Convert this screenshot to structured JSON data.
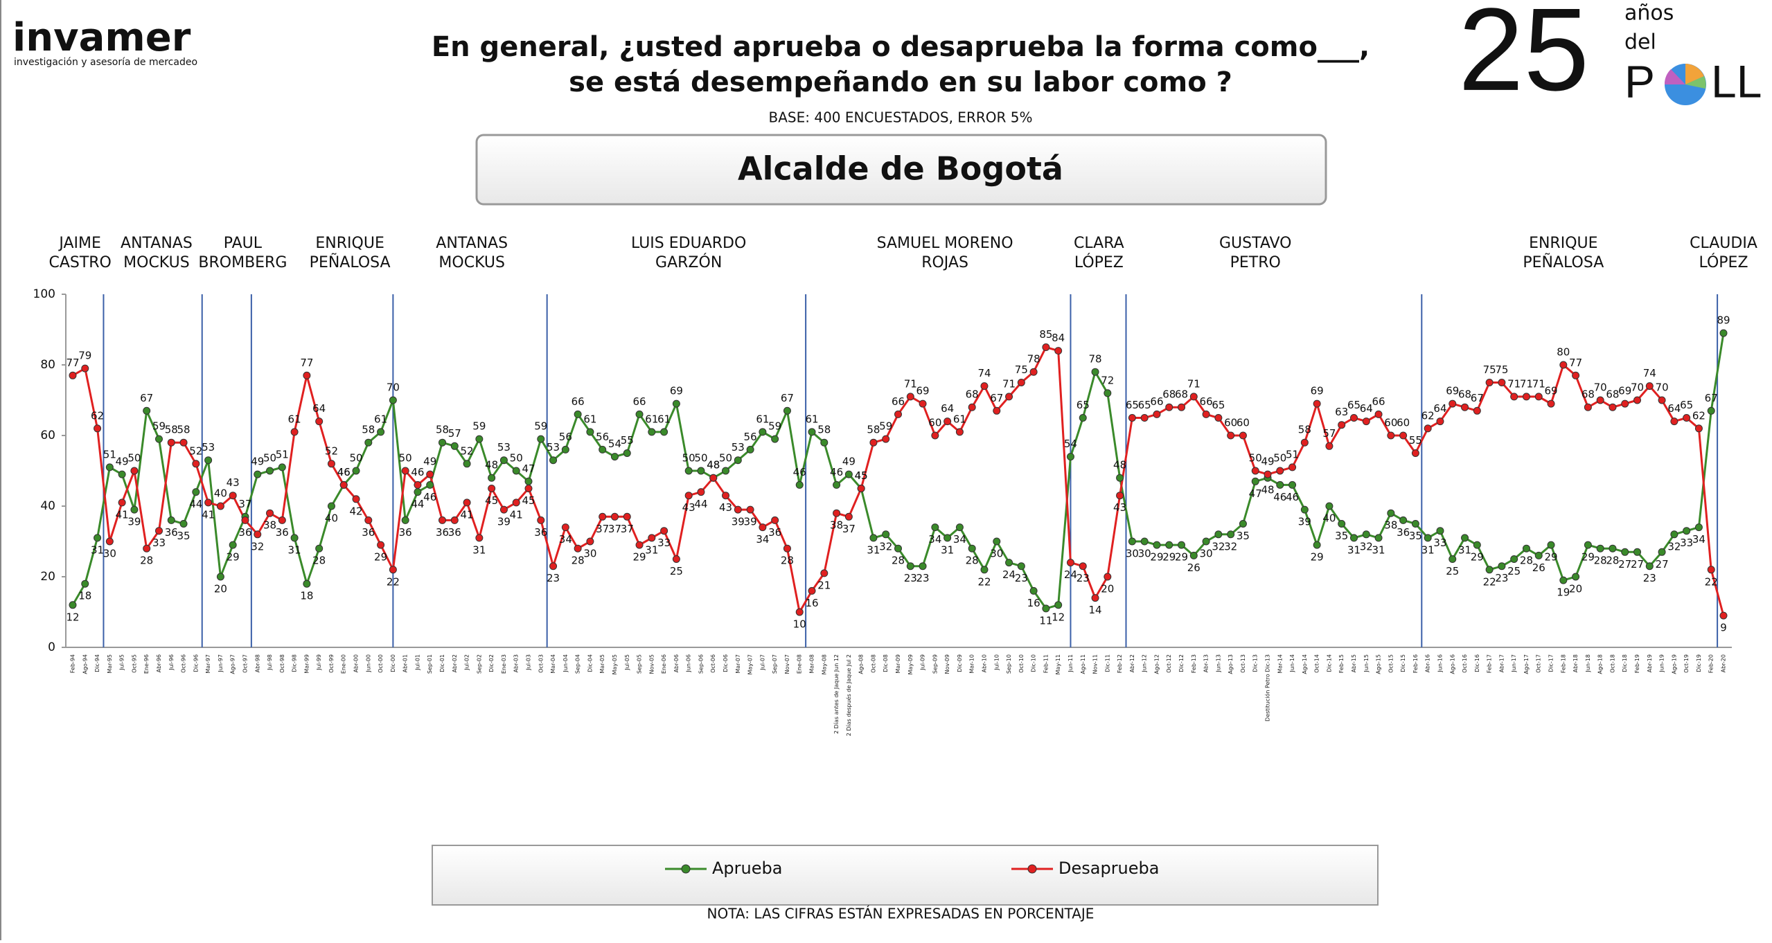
{
  "header": {
    "logo": "invamer",
    "tagline": "investigación y asesoría de mercadeo",
    "badge_number": "25",
    "badge_line1": "años",
    "badge_line2": "del",
    "badge_word_start": "P",
    "badge_word_end": "LL"
  },
  "chart_data": {
    "type": "line",
    "title": [
      "En general, ¿usted aprueba o desaprueba la forma como___,",
      "se está desempeñando en su labor como ?"
    ],
    "subtitle": "BASE: 400 ENCUESTADOS, ERROR 5%",
    "heading": "Alcalde de Bogotá",
    "note": "NOTA: LAS CIFRAS ESTÁN EXPRESADAS EN PORCENTAJE",
    "mayors": [
      [
        "JAIME",
        "CASTRO"
      ],
      [
        "ANTANAS",
        "MOCKUS"
      ],
      [
        "PAUL",
        "BROMBERG"
      ],
      [
        "ENRIQUE",
        "PEÑALOSA"
      ],
      [
        "ANTANAS",
        "MOCKUS"
      ],
      [
        "LUIS EDUARDO",
        "GARZÓN"
      ],
      [
        "SAMUEL MORENO",
        "ROJAS"
      ],
      [
        "CLARA",
        "LÓPEZ"
      ],
      [
        "GUSTAVO",
        "PETRO"
      ],
      [
        "ENRIQUE",
        "PEÑALOSA"
      ],
      [
        "CLAUDIA",
        "LÓPEZ"
      ]
    ],
    "ylim": [
      0,
      100
    ],
    "yticks": [
      0,
      20,
      40,
      60,
      80,
      100
    ],
    "grid": false,
    "legend": "bottom",
    "categories": [
      "Feb-94",
      "Ago-94",
      "Dic-94",
      "Mar-95",
      "Jul-95",
      "Oct-95",
      "Ene-96",
      "Abr-96",
      "Jul-96",
      "Oct-96",
      "Dic-96",
      "Mar-97",
      "Jun-97",
      "Ago-97",
      "Oct-97",
      "Abr-98",
      "Jul-98",
      "Oct-98",
      "Dic-98",
      "Mar-99",
      "Jul-99",
      "Oct-99",
      "Ene-00",
      "Abr-00",
      "Jun-00",
      "Oct-00",
      "Dic-00",
      "Abr-01",
      "Jul-01",
      "Sep-01",
      "Dic-01",
      "Abr-02",
      "Jul-02",
      "Sep-02",
      "Dic-02",
      "Ene-03",
      "Abr-03",
      "Jul-03",
      "Oct-03",
      "Mar-04",
      "Jun-04",
      "Sep-04",
      "Dic-04",
      "Mar-05",
      "May-05",
      "Jul-05",
      "Sep-05",
      "Nov-05",
      "Ene-06",
      "Abr-06",
      "Jun-06",
      "Sep-06",
      "Oct-06",
      "Dic-06",
      "Mar-07",
      "May-07",
      "Jul-07",
      "Sep-07",
      "Nov-07",
      "Ene-08",
      "Mar-08",
      "May-08",
      "2 Días antes de Jaque Jun 12",
      "2 Días después de Jaque Jul 2",
      "Ago-08",
      "Oct-08",
      "Dic-08",
      "Mar-09",
      "May-09",
      "Jul-09",
      "Sep-09",
      "Nov-09",
      "Dic-09",
      "Mar-10",
      "Abr-10",
      "Jul-10",
      "Sep-10",
      "Oct-10",
      "Dic-10",
      "Feb-11",
      "May-11",
      "Jun-11",
      "Ago-11",
      "Nov-11",
      "Dic-11",
      "Feb-12",
      "Abr-12",
      "Jun-12",
      "Ago-12",
      "Oct-12",
      "Dic-12",
      "Feb-13",
      "Abr-13",
      "Jun-13",
      "Ago-13",
      "Oct-13",
      "Dic-13",
      "Destitución Petro Dic-13",
      "Mar-14",
      "Jun-14",
      "Ago-14",
      "Oct-14",
      "Dic-14",
      "Feb-15",
      "Abr-15",
      "Jun-15",
      "Ago-15",
      "Oct-15",
      "Dic-15",
      "Feb-16",
      "Abr-16",
      "Jun-16",
      "Ago-16",
      "Oct-16",
      "Dic-16",
      "Feb-17",
      "Abr-17",
      "Jun-17",
      "Ago-17",
      "Oct-17",
      "Dic-17",
      "Feb-18",
      "Abr-18",
      "Jun-18",
      "Ago-18",
      "Oct-18",
      "Dic-18",
      "Feb-19",
      "Abr-19",
      "Jun-19",
      "Ago-19",
      "Oct-19",
      "Dic-19",
      "Feb-20",
      "Abr-20"
    ],
    "series": [
      {
        "name": "Aprueba",
        "color": "#3a8a2a",
        "values": [
          12,
          18,
          31,
          51,
          49,
          39,
          67,
          59,
          36,
          35,
          44,
          53,
          20,
          29,
          37,
          49,
          50,
          51,
          31,
          18,
          28,
          40,
          46,
          50,
          58,
          61,
          70,
          36,
          44,
          46,
          58,
          57,
          52,
          59,
          48,
          53,
          50,
          47,
          59,
          53,
          56,
          66,
          61,
          56,
          54,
          55,
          66,
          61,
          61,
          69,
          50,
          50,
          48,
          50,
          53,
          56,
          61,
          59,
          67,
          46,
          61,
          58,
          46,
          49,
          45,
          31,
          32,
          28,
          23,
          23,
          34,
          31,
          34,
          28,
          22,
          30,
          24,
          23,
          16,
          11,
          12,
          54,
          65,
          78,
          72,
          48,
          30,
          30,
          29,
          29,
          29,
          26,
          30,
          32,
          32,
          35,
          47,
          48,
          46,
          46,
          39,
          29,
          40,
          35,
          31,
          32,
          31,
          38,
          36,
          35,
          31,
          33,
          25,
          31,
          29,
          22,
          23,
          25,
          28,
          26,
          29,
          19,
          20,
          29,
          28,
          28,
          27,
          27,
          23,
          27,
          32,
          33,
          34,
          67,
          89
        ]
      },
      {
        "name": "Desaprueba",
        "color": "#e02020",
        "values": [
          77,
          79,
          62,
          30,
          41,
          50,
          28,
          33,
          58,
          58,
          52,
          41,
          40,
          43,
          36,
          32,
          38,
          36,
          61,
          77,
          64,
          52,
          46,
          42,
          36,
          29,
          22,
          50,
          46,
          49,
          36,
          36,
          41,
          31,
          45,
          39,
          41,
          45,
          36,
          23,
          34,
          28,
          30,
          37,
          37,
          37,
          29,
          31,
          33,
          25,
          43,
          44,
          48,
          43,
          39,
          39,
          34,
          36,
          28,
          10,
          16,
          21,
          38,
          37,
          45,
          58,
          59,
          66,
          71,
          69,
          60,
          64,
          61,
          68,
          74,
          67,
          71,
          75,
          78,
          85,
          84,
          24,
          23,
          14,
          20,
          43,
          65,
          65,
          66,
          68,
          68,
          71,
          66,
          65,
          60,
          60,
          50,
          49,
          50,
          51,
          58,
          69,
          57,
          63,
          65,
          64,
          66,
          60,
          60,
          55,
          62,
          64,
          69,
          68,
          67,
          75,
          75,
          71,
          71,
          71,
          69,
          80,
          77,
          68,
          70,
          68,
          69,
          70,
          74,
          70,
          64,
          65,
          62,
          22,
          9
        ]
      }
    ]
  }
}
